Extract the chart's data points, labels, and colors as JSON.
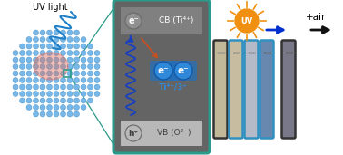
{
  "bg_color": "#ffffff",
  "uv_light_text": "UV light",
  "uv_text": "UV",
  "plus_air_text": "+air",
  "cb_text": "CB (Ti⁴⁺)",
  "vb_text": "VB (O²⁻)",
  "ti_text": "Ti⁴⁺/3⁺",
  "e_minus": "e⁻",
  "h_plus": "h⁺",
  "panel_bg": "#646464",
  "cb_box_color": "#808080",
  "vb_box_color": "#b8b8b8",
  "panel_border": "#2a9a8a",
  "nanocrystal_blue": "#78b8e8",
  "nanocrystal_blue_edge": "#4890c8",
  "nanocrystal_red": "#e07060",
  "wave_color": "#1840c0",
  "arrow_orange": "#c85020",
  "arrow_uv_blue": "#0030d0",
  "arrow_black": "#111111",
  "sun_color": "#f09010",
  "sun_ray_color": "#f09010",
  "vial_colors": [
    "#c0b090",
    "#c8b898",
    "#b0b8c8",
    "#7090b8",
    "#808090"
  ],
  "vial_border_dark": "#333333",
  "vial_border_teal": "#3090c0",
  "electron_fill": "#3088d8",
  "electron_edge": "#1058a8",
  "e_circle_gray": "#909090",
  "e_circle_gray_edge": "#686868"
}
